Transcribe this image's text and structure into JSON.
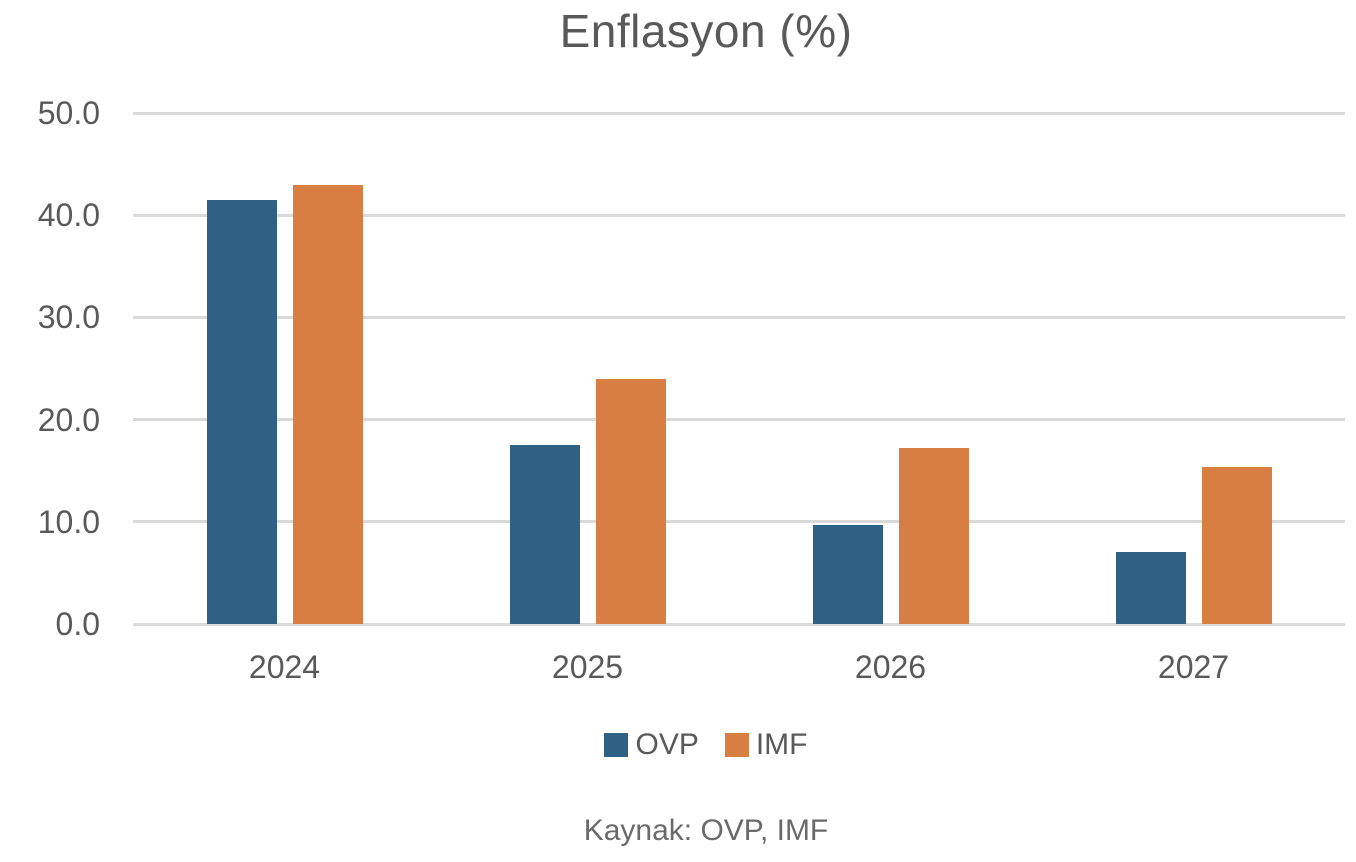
{
  "figure": {
    "title": "Enflasyon (%)",
    "source_note": "Kaynak: OVP, IMF"
  },
  "chart_data": {
    "type": "bar",
    "title": "Enflasyon (%)",
    "categories": [
      "2024",
      "2025",
      "2026",
      "2027"
    ],
    "series": [
      {
        "name": "OVP",
        "color": "#2e6183",
        "values": [
          41.5,
          17.5,
          9.7,
          7.0
        ]
      },
      {
        "name": "IMF",
        "color": "#d97e42",
        "values": [
          43.0,
          24.0,
          17.2,
          15.4
        ]
      }
    ],
    "ylim": [
      0,
      50
    ],
    "yticks": [
      0,
      10,
      20,
      30,
      40,
      50
    ],
    "ytick_labels": [
      "0.0",
      "10.0",
      "20.0",
      "30.0",
      "40.0",
      "50.0"
    ],
    "xlabel": "",
    "ylabel": "",
    "grid": "horizontal",
    "gridline_color": "#d9d9d9",
    "text_color": "#595959",
    "legend_position": "bottom",
    "source": "Kaynak: OVP, IMF"
  }
}
